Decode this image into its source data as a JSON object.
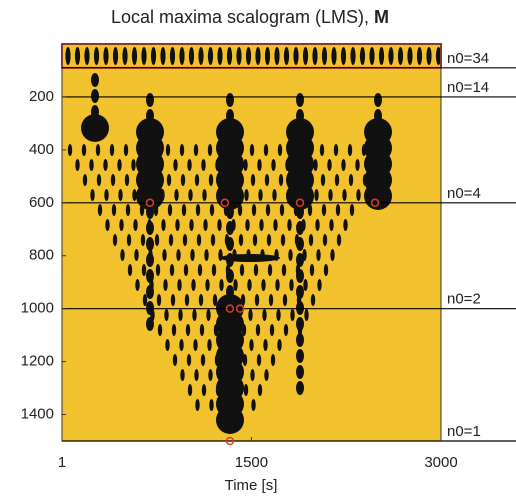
{
  "chart_data": {
    "type": "scalogram",
    "title": "Local maxima scalogram (LMS),",
    "title_symbol": "M",
    "x_label": "Time [s]",
    "xlim": [
      1,
      3000
    ],
    "xticks": [
      1,
      1500,
      3000
    ],
    "ylim": [
      0,
      1500
    ],
    "yticks": [
      200,
      400,
      600,
      800,
      1000,
      1200,
      1400
    ],
    "y_inverted": true,
    "background_color": "#f2c12e",
    "levels": [
      {
        "label": "n0=34",
        "value": 90
      },
      {
        "label": "n0=14",
        "value": 200
      },
      {
        "label": "n0=4",
        "value": 600
      },
      {
        "label": "n0=2",
        "value": 1000
      },
      {
        "label": "n0=1",
        "value": 1500
      }
    ],
    "markers": {
      "color": "#e03c28",
      "x": [
        697,
        1290,
        1884,
        2478,
        1330,
        1410,
        1330
      ],
      "y": [
        600,
        600,
        600,
        600,
        1000,
        1000,
        1500
      ]
    }
  }
}
